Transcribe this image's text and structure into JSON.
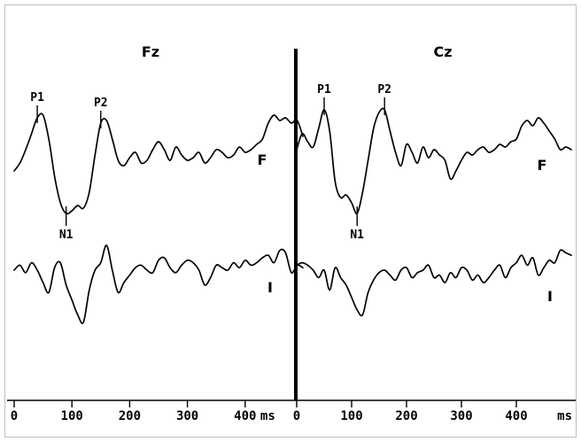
{
  "chart_data": [
    {
      "type": "line",
      "title": "Fz",
      "xunit": "ms",
      "xlim": [
        0,
        500
      ],
      "xticks": [
        0,
        100,
        200,
        300,
        400
      ],
      "series": [
        {
          "name": "F",
          "x": [
            0,
            10,
            20,
            30,
            40,
            50,
            60,
            70,
            80,
            90,
            100,
            110,
            120,
            130,
            140,
            150,
            160,
            170,
            180,
            190,
            200,
            210,
            220,
            230,
            240,
            250,
            260,
            270,
            280,
            290,
            300,
            310,
            320,
            330,
            340,
            350,
            360,
            370,
            380,
            390,
            400,
            410,
            420,
            430,
            440,
            450,
            460,
            470,
            480,
            490,
            500
          ],
          "y": [
            -0.6,
            -0.3,
            0.2,
            0.8,
            1.4,
            1.5,
            0.6,
            -0.8,
            -1.8,
            -2.2,
            -2.1,
            -1.9,
            -2.0,
            -1.4,
            0.0,
            1.2,
            1.3,
            0.6,
            -0.2,
            -0.4,
            -0.1,
            0.1,
            -0.3,
            -0.2,
            0.2,
            0.5,
            0.2,
            -0.2,
            0.3,
            0.0,
            -0.2,
            -0.1,
            0.1,
            -0.3,
            -0.1,
            0.2,
            0.1,
            -0.1,
            0.0,
            0.3,
            0.1,
            0.2,
            0.4,
            0.6,
            1.2,
            1.5,
            1.3,
            1.4,
            1.2,
            1.3,
            0.7
          ]
        },
        {
          "name": "I",
          "x": [
            0,
            10,
            20,
            30,
            40,
            50,
            60,
            70,
            80,
            90,
            100,
            110,
            120,
            130,
            140,
            150,
            160,
            170,
            180,
            190,
            200,
            210,
            220,
            230,
            240,
            250,
            260,
            270,
            280,
            290,
            300,
            310,
            320,
            330,
            340,
            350,
            360,
            370,
            380,
            390,
            400,
            410,
            420,
            430,
            440,
            450,
            460,
            470,
            480,
            490,
            500
          ],
          "y": [
            0.0,
            0.2,
            -0.1,
            0.3,
            0.0,
            -0.5,
            -0.9,
            0.1,
            0.3,
            -0.6,
            -1.2,
            -1.8,
            -2.1,
            -0.8,
            0.0,
            0.3,
            1.0,
            0.0,
            -0.9,
            -0.5,
            -0.2,
            0.1,
            0.2,
            0.0,
            -0.1,
            0.4,
            0.5,
            0.1,
            -0.1,
            0.2,
            0.4,
            0.3,
            0.0,
            -0.6,
            -0.3,
            0.2,
            0.1,
            0.0,
            0.3,
            0.1,
            0.4,
            0.2,
            0.3,
            0.5,
            0.6,
            0.3,
            0.8,
            0.7,
            -0.1,
            0.2,
            0.1
          ]
        }
      ],
      "peak_labels": [
        {
          "label": "P1",
          "series": "F",
          "x": 40
        },
        {
          "label": "N1",
          "series": "F",
          "x": 90
        },
        {
          "label": "P2",
          "series": "F",
          "x": 150
        }
      ]
    },
    {
      "type": "line",
      "title": "Cz",
      "xunit": "ms",
      "xlim": [
        0,
        500
      ],
      "xticks": [
        0,
        100,
        200,
        300,
        400
      ],
      "series": [
        {
          "name": "F",
          "x": [
            0,
            10,
            20,
            30,
            40,
            50,
            60,
            70,
            80,
            90,
            100,
            110,
            120,
            130,
            140,
            150,
            160,
            170,
            180,
            190,
            200,
            210,
            220,
            230,
            240,
            250,
            260,
            270,
            280,
            290,
            300,
            310,
            320,
            330,
            340,
            350,
            360,
            370,
            380,
            390,
            400,
            410,
            420,
            430,
            440,
            450,
            460,
            470,
            480,
            490,
            500
          ],
          "y": [
            0.2,
            0.8,
            0.5,
            0.3,
            1.0,
            1.7,
            0.9,
            -1.0,
            -1.6,
            -1.5,
            -1.8,
            -2.2,
            -1.4,
            -0.2,
            1.0,
            1.6,
            1.7,
            0.9,
            0.1,
            -0.4,
            0.4,
            0.1,
            -0.3,
            0.3,
            -0.1,
            0.2,
            0.0,
            -0.2,
            -0.9,
            -0.6,
            -0.2,
            0.1,
            0.0,
            0.2,
            0.3,
            0.1,
            0.2,
            0.4,
            0.3,
            0.5,
            0.6,
            1.1,
            1.3,
            1.1,
            1.4,
            1.2,
            0.9,
            0.6,
            0.2,
            0.3,
            0.2
          ]
        },
        {
          "name": "I",
          "x": [
            0,
            10,
            20,
            30,
            40,
            50,
            60,
            70,
            80,
            90,
            100,
            110,
            120,
            130,
            140,
            150,
            160,
            170,
            180,
            190,
            200,
            210,
            220,
            230,
            240,
            250,
            260,
            270,
            280,
            290,
            300,
            310,
            320,
            330,
            340,
            350,
            360,
            370,
            380,
            390,
            400,
            410,
            420,
            430,
            440,
            450,
            460,
            470,
            480,
            490,
            500
          ],
          "y": [
            0.2,
            0.3,
            0.2,
            0.0,
            -0.3,
            0.0,
            -0.8,
            0.1,
            -0.3,
            -0.6,
            -1.1,
            -1.6,
            -1.8,
            -0.9,
            -0.4,
            -0.1,
            0.0,
            -0.2,
            -0.4,
            0.0,
            0.1,
            -0.3,
            -0.1,
            0.0,
            0.2,
            -0.3,
            -0.2,
            -0.5,
            -0.1,
            -0.3,
            0.1,
            0.0,
            -0.4,
            -0.2,
            -0.5,
            -0.3,
            0.0,
            0.2,
            -0.3,
            0.1,
            0.3,
            0.6,
            0.2,
            0.5,
            -0.2,
            0.1,
            0.4,
            0.3,
            0.8,
            0.7,
            0.6
          ]
        }
      ],
      "peak_labels": [
        {
          "label": "P1",
          "series": "F",
          "x": 50
        },
        {
          "label": "N1",
          "series": "F",
          "x": 110
        },
        {
          "label": "P2",
          "series": "F",
          "x": 160
        }
      ]
    }
  ]
}
